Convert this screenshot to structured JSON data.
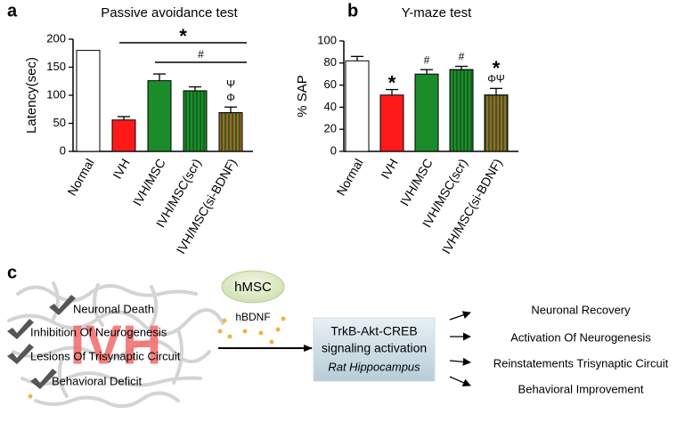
{
  "chart_data": [
    {
      "type": "bar",
      "panel": "a",
      "title": "Passive avoidance test",
      "ylabel": "Latency(sec)",
      "categories": [
        "Normal",
        "IVH",
        "IVH/MSC",
        "IVH/MSC(scr)",
        "IVH/MSC(si-BDNF)"
      ],
      "values": [
        180,
        56,
        126,
        108,
        69
      ],
      "errors": [
        0,
        6,
        12,
        7,
        10
      ],
      "colors": [
        "#ffffff",
        "#ff1a1a",
        "#1c8c2a",
        "#1c8c2a",
        "#9a6a2a"
      ],
      "hatch": [
        false,
        false,
        false,
        true,
        true
      ],
      "hatch_color": "#0b4a12",
      "ylim": [
        0,
        200
      ],
      "yticks": [
        0,
        50,
        100,
        150,
        200
      ],
      "brackets": [
        {
          "text": "*",
          "from": "IVH",
          "to": "IVH/MSC(si-BDNF)"
        },
        {
          "text": "#",
          "from": "IVH/MSC",
          "to": "IVH/MSC(si-BDNF)"
        }
      ],
      "annotations": [
        {
          "text": "Φ",
          "category": "IVH/MSC(si-BDNF)"
        },
        {
          "text": "Ψ",
          "category": "IVH/MSC(si-BDNF)"
        }
      ]
    },
    {
      "type": "bar",
      "panel": "b",
      "title": "Y-maze test",
      "ylabel": "% SAP",
      "categories": [
        "Normal",
        "IVH",
        "IVH/MSC",
        "IVH/MSC(scr)",
        "IVH/MSC(si-BDNF)"
      ],
      "values": [
        82,
        51,
        70,
        74,
        51
      ],
      "errors": [
        4,
        5,
        4,
        3,
        6
      ],
      "colors": [
        "#ffffff",
        "#ff1a1a",
        "#1c8c2a",
        "#1c8c2a",
        "#9a6a2a"
      ],
      "hatch": [
        false,
        false,
        false,
        true,
        true
      ],
      "hatch_color": "#0b4a12",
      "ylim": [
        0,
        100
      ],
      "yticks": [
        0,
        20,
        40,
        60,
        80,
        100
      ],
      "brackets": [],
      "annotations": [
        {
          "text": "*",
          "category": "IVH"
        },
        {
          "text": "#",
          "category": "IVH/MSC"
        },
        {
          "text": "#",
          "category": "IVH/MSC(scr)"
        },
        {
          "text": "ΦΨ",
          "category": "IVH/MSC(si-BDNF)"
        },
        {
          "text": "*",
          "category": "IVH/MSC(si-BDNF)"
        }
      ]
    }
  ],
  "diagram": {
    "panel": "c",
    "center_label": "IVH",
    "deficits": [
      "Neuronal Death",
      "Inhibition Of Neurogenesis",
      "Lesions Of Trisynaptic Circuit",
      "Behavioral Deficit"
    ],
    "treatment": "hMSC",
    "factor": "hBDNF",
    "pathway": [
      "TrkB-Akt-CREB",
      "signaling activation"
    ],
    "tissue": "Rat Hippocampus",
    "outcomes": [
      "Neuronal Recovery",
      "Activation Of Neurogenesis",
      "Reinstatements Trisynaptic Circuit",
      "Behavioral Improvement"
    ]
  }
}
